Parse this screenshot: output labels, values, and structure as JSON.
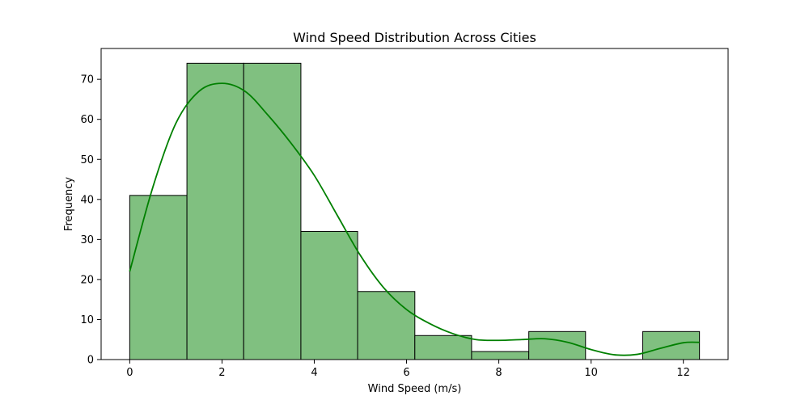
{
  "chart_data": {
    "type": "bar",
    "title": "Wind Speed Distribution Across Cities",
    "xlabel": "Wind Speed (m/s)",
    "ylabel": "Frequency",
    "xlim": [
      -0.62,
      12.97
    ],
    "ylim": [
      0,
      77.7
    ],
    "xticks": [
      0,
      2,
      4,
      6,
      8,
      10,
      12
    ],
    "yticks": [
      0,
      10,
      20,
      30,
      40,
      50,
      60,
      70
    ],
    "bins": [
      {
        "x0": 0.0,
        "x1": 1.24,
        "count": 41
      },
      {
        "x0": 1.24,
        "x1": 2.47,
        "count": 74
      },
      {
        "x0": 2.47,
        "x1": 3.71,
        "count": 74
      },
      {
        "x0": 3.71,
        "x1": 4.94,
        "count": 32
      },
      {
        "x0": 4.94,
        "x1": 6.18,
        "count": 17
      },
      {
        "x0": 6.18,
        "x1": 7.41,
        "count": 6
      },
      {
        "x0": 7.41,
        "x1": 8.65,
        "count": 2
      },
      {
        "x0": 8.65,
        "x1": 9.88,
        "count": 7
      },
      {
        "x0": 9.88,
        "x1": 11.12,
        "count": 0
      },
      {
        "x0": 11.12,
        "x1": 12.35,
        "count": 7
      }
    ],
    "kde": {
      "x": [
        0,
        0.5,
        1.0,
        1.5,
        2.0,
        2.5,
        3.0,
        3.5,
        4.0,
        4.5,
        5.0,
        5.5,
        6.0,
        6.5,
        7.0,
        7.5,
        8.0,
        8.5,
        9.0,
        9.5,
        10.0,
        10.5,
        11.0,
        11.5,
        12.0,
        12.35
      ],
      "y": [
        22,
        43,
        59,
        67,
        69,
        67,
        61,
        54,
        46,
        36,
        26,
        18,
        12.5,
        9,
        6.5,
        5,
        4.8,
        5,
        5.2,
        4.3,
        2.5,
        1.2,
        1.3,
        2.8,
        4.2,
        4.3
      ]
    },
    "colors": {
      "bar_fill": "#80c080",
      "bar_edge": "#000000",
      "kde_line": "#008000"
    },
    "grid": false,
    "legend": "none"
  }
}
